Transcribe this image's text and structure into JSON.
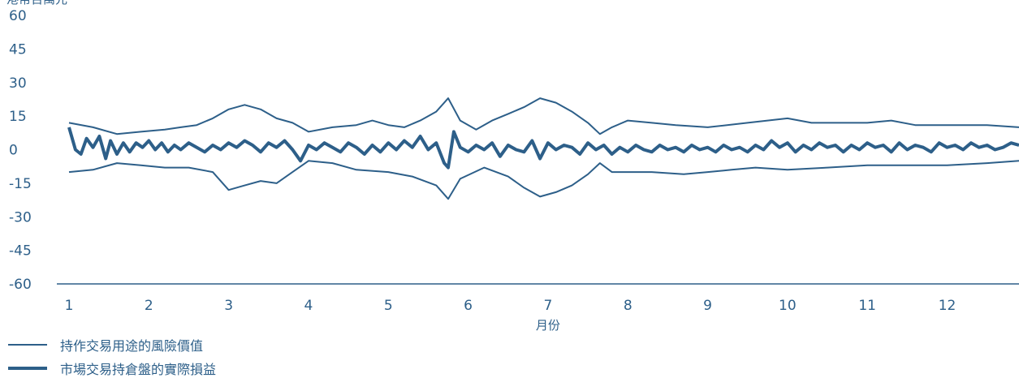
{
  "chart_data": {
    "type": "line",
    "y_unit_label": "港幣百萬元",
    "xlabel": "月份",
    "ylim": [
      -60,
      60
    ],
    "yticks": [
      "60",
      "45",
      "30",
      "15",
      "0",
      "-15",
      "-30",
      "-45",
      "-60"
    ],
    "xlim": [
      1,
      12.9
    ],
    "xticks": [
      "1",
      "2",
      "3",
      "4",
      "5",
      "6",
      "7",
      "8",
      "9",
      "10",
      "11",
      "12"
    ],
    "colors": {
      "series": "#2d5f89",
      "axis": "#2d5f89"
    },
    "series": [
      {
        "name": "持作交易用途的風險價值",
        "role": "upper-band",
        "points": [
          [
            1,
            12
          ],
          [
            1.3,
            10
          ],
          [
            1.6,
            7
          ],
          [
            1.9,
            8
          ],
          [
            2.2,
            9
          ],
          [
            2.4,
            10
          ],
          [
            2.6,
            11
          ],
          [
            2.8,
            14
          ],
          [
            3,
            18
          ],
          [
            3.2,
            20
          ],
          [
            3.4,
            18
          ],
          [
            3.6,
            14
          ],
          [
            3.8,
            12
          ],
          [
            4,
            8
          ],
          [
            4.3,
            10
          ],
          [
            4.6,
            11
          ],
          [
            4.8,
            13
          ],
          [
            5,
            11
          ],
          [
            5.2,
            10
          ],
          [
            5.4,
            13
          ],
          [
            5.6,
            17
          ],
          [
            5.75,
            23
          ],
          [
            5.9,
            13
          ],
          [
            6.1,
            9
          ],
          [
            6.3,
            13
          ],
          [
            6.5,
            16
          ],
          [
            6.7,
            19
          ],
          [
            6.9,
            23
          ],
          [
            7.1,
            21
          ],
          [
            7.3,
            17
          ],
          [
            7.5,
            12
          ],
          [
            7.65,
            7
          ],
          [
            7.8,
            10
          ],
          [
            8,
            13
          ],
          [
            8.3,
            12
          ],
          [
            8.6,
            11
          ],
          [
            9,
            10
          ],
          [
            9.5,
            12
          ],
          [
            10,
            14
          ],
          [
            10.3,
            12
          ],
          [
            10.6,
            12
          ],
          [
            11,
            12
          ],
          [
            11.3,
            13
          ],
          [
            11.6,
            11
          ],
          [
            12,
            11
          ],
          [
            12.5,
            11
          ],
          [
            12.9,
            10
          ]
        ]
      },
      {
        "name": "",
        "role": "lower-band",
        "points": [
          [
            1,
            -10
          ],
          [
            1.3,
            -9
          ],
          [
            1.6,
            -6
          ],
          [
            1.9,
            -7
          ],
          [
            2.2,
            -8
          ],
          [
            2.5,
            -8
          ],
          [
            2.8,
            -10
          ],
          [
            3,
            -18
          ],
          [
            3.2,
            -16
          ],
          [
            3.4,
            -14
          ],
          [
            3.6,
            -15
          ],
          [
            3.8,
            -10
          ],
          [
            4,
            -5
          ],
          [
            4.3,
            -6
          ],
          [
            4.6,
            -9
          ],
          [
            5,
            -10
          ],
          [
            5.3,
            -12
          ],
          [
            5.6,
            -16
          ],
          [
            5.75,
            -22
          ],
          [
            5.9,
            -13
          ],
          [
            6.2,
            -8
          ],
          [
            6.5,
            -12
          ],
          [
            6.7,
            -17
          ],
          [
            6.9,
            -21
          ],
          [
            7.1,
            -19
          ],
          [
            7.3,
            -16
          ],
          [
            7.5,
            -11
          ],
          [
            7.65,
            -6
          ],
          [
            7.8,
            -10
          ],
          [
            8.3,
            -10
          ],
          [
            8.7,
            -11
          ],
          [
            9,
            -10
          ],
          [
            9.3,
            -9
          ],
          [
            9.6,
            -8
          ],
          [
            10,
            -9
          ],
          [
            10.5,
            -8
          ],
          [
            11,
            -7
          ],
          [
            11.5,
            -7
          ],
          [
            12,
            -7
          ],
          [
            12.5,
            -6
          ],
          [
            12.9,
            -5
          ]
        ]
      },
      {
        "name": "市場交易持倉盤的實際損益",
        "role": "pnl",
        "points": [
          [
            1,
            10
          ],
          [
            1.08,
            0
          ],
          [
            1.15,
            -2
          ],
          [
            1.22,
            5
          ],
          [
            1.3,
            1
          ],
          [
            1.38,
            6
          ],
          [
            1.46,
            -4
          ],
          [
            1.52,
            4
          ],
          [
            1.6,
            -2
          ],
          [
            1.68,
            3
          ],
          [
            1.76,
            -1
          ],
          [
            1.84,
            3
          ],
          [
            1.92,
            1
          ],
          [
            2,
            4
          ],
          [
            2.08,
            0
          ],
          [
            2.16,
            3
          ],
          [
            2.24,
            -1
          ],
          [
            2.32,
            2
          ],
          [
            2.4,
            0
          ],
          [
            2.5,
            3
          ],
          [
            2.6,
            1
          ],
          [
            2.7,
            -1
          ],
          [
            2.8,
            2
          ],
          [
            2.9,
            0
          ],
          [
            3,
            3
          ],
          [
            3.1,
            1
          ],
          [
            3.2,
            4
          ],
          [
            3.3,
            2
          ],
          [
            3.4,
            -1
          ],
          [
            3.5,
            3
          ],
          [
            3.6,
            1
          ],
          [
            3.7,
            4
          ],
          [
            3.8,
            0
          ],
          [
            3.9,
            -5
          ],
          [
            4,
            2
          ],
          [
            4.1,
            0
          ],
          [
            4.2,
            3
          ],
          [
            4.3,
            1
          ],
          [
            4.4,
            -1
          ],
          [
            4.5,
            3
          ],
          [
            4.6,
            1
          ],
          [
            4.7,
            -2
          ],
          [
            4.8,
            2
          ],
          [
            4.9,
            -1
          ],
          [
            5,
            3
          ],
          [
            5.1,
            0
          ],
          [
            5.2,
            4
          ],
          [
            5.3,
            1
          ],
          [
            5.4,
            6
          ],
          [
            5.5,
            0
          ],
          [
            5.6,
            3
          ],
          [
            5.7,
            -6
          ],
          [
            5.75,
            -8
          ],
          [
            5.82,
            8
          ],
          [
            5.9,
            1
          ],
          [
            6,
            -1
          ],
          [
            6.1,
            2
          ],
          [
            6.2,
            0
          ],
          [
            6.3,
            3
          ],
          [
            6.4,
            -3
          ],
          [
            6.5,
            2
          ],
          [
            6.6,
            0
          ],
          [
            6.7,
            -1
          ],
          [
            6.8,
            4
          ],
          [
            6.9,
            -4
          ],
          [
            7,
            3
          ],
          [
            7.1,
            0
          ],
          [
            7.2,
            2
          ],
          [
            7.3,
            1
          ],
          [
            7.4,
            -2
          ],
          [
            7.5,
            3
          ],
          [
            7.6,
            0
          ],
          [
            7.7,
            2
          ],
          [
            7.8,
            -2
          ],
          [
            7.9,
            1
          ],
          [
            8,
            -1
          ],
          [
            8.1,
            2
          ],
          [
            8.2,
            0
          ],
          [
            8.3,
            -1
          ],
          [
            8.4,
            2
          ],
          [
            8.5,
            0
          ],
          [
            8.6,
            1
          ],
          [
            8.7,
            -1
          ],
          [
            8.8,
            2
          ],
          [
            8.9,
            0
          ],
          [
            9,
            1
          ],
          [
            9.1,
            -1
          ],
          [
            9.2,
            2
          ],
          [
            9.3,
            0
          ],
          [
            9.4,
            1
          ],
          [
            9.5,
            -1
          ],
          [
            9.6,
            2
          ],
          [
            9.7,
            0
          ],
          [
            9.8,
            4
          ],
          [
            9.9,
            1
          ],
          [
            10,
            3
          ],
          [
            10.1,
            -1
          ],
          [
            10.2,
            2
          ],
          [
            10.3,
            0
          ],
          [
            10.4,
            3
          ],
          [
            10.5,
            1
          ],
          [
            10.6,
            2
          ],
          [
            10.7,
            -1
          ],
          [
            10.8,
            2
          ],
          [
            10.9,
            0
          ],
          [
            11,
            3
          ],
          [
            11.1,
            1
          ],
          [
            11.2,
            2
          ],
          [
            11.3,
            -1
          ],
          [
            11.4,
            3
          ],
          [
            11.5,
            0
          ],
          [
            11.6,
            2
          ],
          [
            11.7,
            1
          ],
          [
            11.8,
            -1
          ],
          [
            11.9,
            3
          ],
          [
            12,
            1
          ],
          [
            12.1,
            2
          ],
          [
            12.2,
            0
          ],
          [
            12.3,
            3
          ],
          [
            12.4,
            1
          ],
          [
            12.5,
            2
          ],
          [
            12.6,
            0
          ],
          [
            12.7,
            1
          ],
          [
            12.8,
            3
          ],
          [
            12.9,
            2
          ]
        ]
      }
    ]
  }
}
